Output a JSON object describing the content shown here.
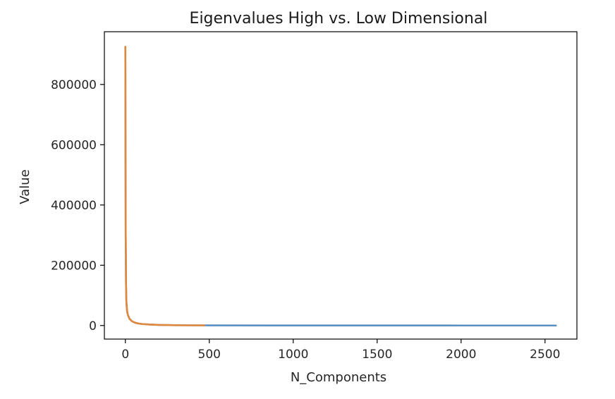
{
  "chart_data": {
    "type": "line",
    "title": "Eigenvalues High vs. Low Dimensional",
    "xlabel": "N_Components",
    "ylabel": "Value",
    "xlim": [
      -125,
      2690
    ],
    "ylim": [
      -45000,
      975000
    ],
    "xticks": [
      {
        "value": 0,
        "label": "0"
      },
      {
        "value": 500,
        "label": "500"
      },
      {
        "value": 1000,
        "label": "1000"
      },
      {
        "value": 1500,
        "label": "1500"
      },
      {
        "value": 2000,
        "label": "2000"
      },
      {
        "value": 2500,
        "label": "2500"
      }
    ],
    "yticks": [
      {
        "value": 0,
        "label": "0"
      },
      {
        "value": 200000,
        "label": "200000"
      },
      {
        "value": 400000,
        "label": "400000"
      },
      {
        "value": 600000,
        "label": "600000"
      },
      {
        "value": 800000,
        "label": "800000"
      }
    ],
    "grid": false,
    "series": [
      {
        "color": "#5b8fc4",
        "x": [
          0,
          1,
          2,
          4,
          6,
          10,
          15,
          25,
          40,
          60,
          80,
          100,
          150,
          200,
          300,
          400,
          500,
          1000,
          1500,
          2000,
          2565
        ],
        "y": [
          925000,
          560000,
          300000,
          140000,
          80000,
          50000,
          35000,
          22000,
          14000,
          9000,
          6500,
          5000,
          3000,
          2000,
          1000,
          600,
          400,
          200,
          100,
          60,
          30
        ]
      },
      {
        "color": "#e0883c",
        "x": [
          0,
          1,
          2,
          4,
          6,
          10,
          15,
          25,
          40,
          60,
          80,
          100,
          150,
          200,
          300,
          400,
          470
        ],
        "y": [
          925000,
          560000,
          300000,
          140000,
          80000,
          50000,
          35000,
          22000,
          14000,
          9000,
          6500,
          5000,
          3000,
          2000,
          1000,
          600,
          450
        ]
      }
    ]
  }
}
